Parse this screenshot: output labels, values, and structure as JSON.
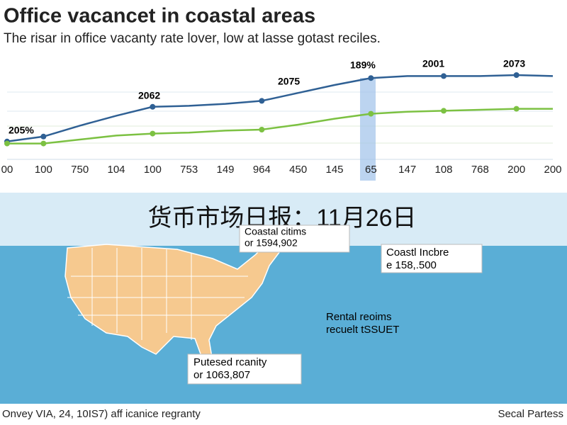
{
  "header": {
    "title": "Office vacancet in coastal areas",
    "subtitle": "The risar in office vacanty rate lover, low at lasse gotast reciles."
  },
  "chart_data": {
    "type": "line",
    "categories": [
      "00",
      "100",
      "750",
      "104",
      "100",
      "753",
      "149",
      "964",
      "450",
      "145",
      "65",
      "147",
      "108",
      "768",
      "200",
      "200"
    ],
    "series": [
      {
        "color": "#2f6094",
        "values": [
          18,
          23,
          34,
          44,
          53,
          54,
          56,
          59,
          67,
          75,
          82,
          84,
          84,
          84,
          85,
          84
        ]
      },
      {
        "color": "#7cc142",
        "values": [
          16,
          16,
          20,
          24,
          26,
          27,
          29,
          30,
          35,
          41,
          46,
          48,
          49,
          50,
          51,
          51
        ]
      }
    ],
    "ylim": [
      0,
      100
    ],
    "annotations": [
      "205%",
      "2062",
      "2075",
      "189%",
      "2001",
      "2073"
    ]
  },
  "overlay": {
    "text": "货币市场日报：11月26日"
  },
  "map": {
    "callouts": [
      {
        "line1": "Coastal citims",
        "line2": "or 1594,902"
      },
      {
        "line1": "Coastl Incbre",
        "line2": "e 158,.500"
      },
      {
        "line1": "Rental reoims",
        "line2": "recuelt tSSUET"
      },
      {
        "line1": "Putesed rcanity",
        "line2": "or 1063,807"
      }
    ]
  },
  "footer": {
    "left": "Onvey VIA, 24, 10IS7) aff icanice regranty",
    "right": "Secal Partess"
  }
}
